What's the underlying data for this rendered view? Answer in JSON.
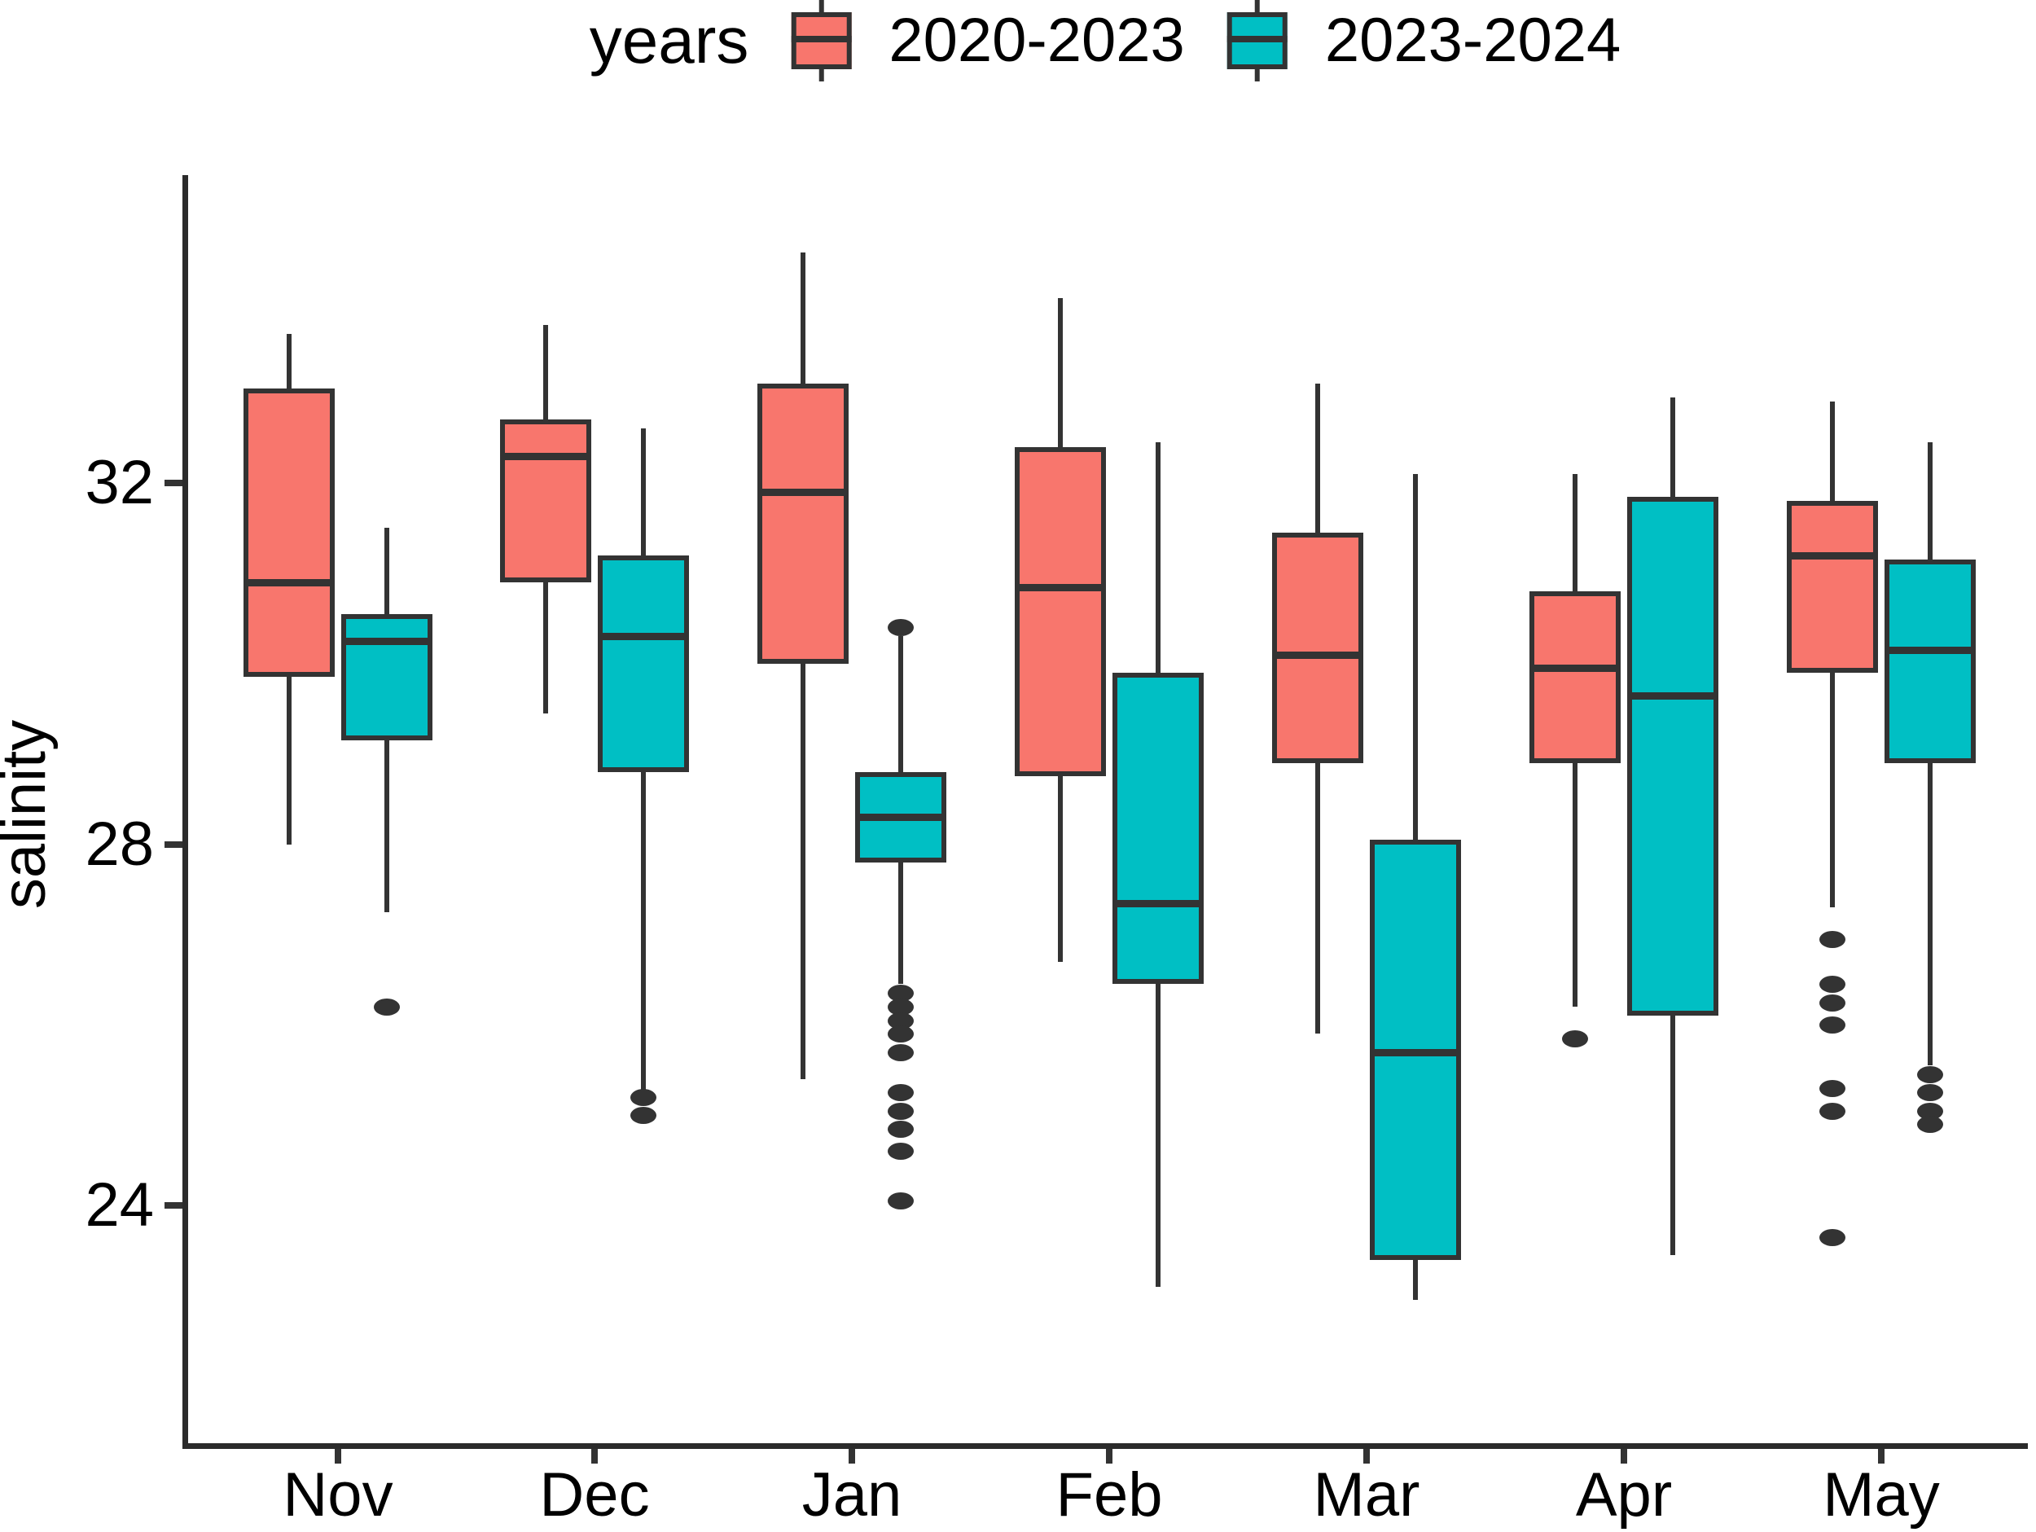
{
  "figure": {
    "background": "#FFFFFF"
  },
  "legend": {
    "title": "years",
    "items": [
      {
        "label": "2020-2023",
        "color": "#F8766D"
      },
      {
        "label": "2023-2024",
        "color": "#00BFC4"
      }
    ]
  },
  "axes": {
    "y_title": "salinity",
    "y_tick_labels": [
      "32",
      "28",
      "24"
    ],
    "x_labels": [
      "Nov",
      "Dec",
      "Jan",
      "Feb",
      "Mar",
      "Apr",
      "May"
    ]
  },
  "style": {
    "series_color_1": "#F8766D",
    "series_color_2": "#00BFC4",
    "stroke": "#333333",
    "axis_color": "#2b2b2b",
    "text_color": "#000000"
  },
  "chart_data": {
    "type": "boxplot",
    "title": "",
    "xlabel": "",
    "ylabel": "salinity",
    "legend_title": "years",
    "legend_position": "top-center",
    "grid": false,
    "categories": [
      "Nov",
      "Dec",
      "Jan",
      "Feb",
      "Mar",
      "Apr",
      "May"
    ],
    "y_ticks": [
      24,
      28,
      32
    ],
    "ylim": [
      21.4,
      35.4
    ],
    "series": [
      {
        "name": "2020-2023",
        "color": "#F8766D",
        "boxes": [
          {
            "category": "Nov",
            "lower_whisker": 28.0,
            "q1": 29.85,
            "median": 30.9,
            "q3": 33.05,
            "upper_whisker": 33.65,
            "outliers": []
          },
          {
            "category": "Dec",
            "lower_whisker": 29.45,
            "q1": 30.9,
            "median": 32.3,
            "q3": 32.7,
            "upper_whisker": 33.75,
            "outliers": []
          },
          {
            "category": "Jan",
            "lower_whisker": 25.4,
            "q1": 30.0,
            "median": 31.9,
            "q3": 33.1,
            "upper_whisker": 34.55,
            "outliers": []
          },
          {
            "category": "Feb",
            "lower_whisker": 26.7,
            "q1": 28.75,
            "median": 30.85,
            "q3": 32.4,
            "upper_whisker": 34.05,
            "outliers": []
          },
          {
            "category": "Mar",
            "lower_whisker": 25.9,
            "q1": 28.9,
            "median": 30.1,
            "q3": 31.45,
            "upper_whisker": 33.1,
            "outliers": []
          },
          {
            "category": "Apr",
            "lower_whisker": 26.2,
            "q1": 28.9,
            "median": 29.95,
            "q3": 30.8,
            "upper_whisker": 32.1,
            "outliers": [
              25.85
            ]
          },
          {
            "category": "May",
            "lower_whisker": 27.3,
            "q1": 29.9,
            "median": 31.2,
            "q3": 31.8,
            "upper_whisker": 32.9,
            "outliers": [
              26.95,
              26.45,
              26.25,
              26.0,
              25.3,
              25.05,
              23.65
            ]
          }
        ]
      },
      {
        "name": "2023-2024",
        "color": "#00BFC4",
        "boxes": [
          {
            "category": "Nov",
            "lower_whisker": 27.25,
            "q1": 29.15,
            "median": 30.25,
            "q3": 30.55,
            "upper_whisker": 31.5,
            "outliers": [
              26.2
            ]
          },
          {
            "category": "Dec",
            "lower_whisker": 25.25,
            "q1": 28.8,
            "median": 30.3,
            "q3": 31.2,
            "upper_whisker": 32.6,
            "outliers": [
              25.2,
              25.0
            ]
          },
          {
            "category": "Jan",
            "lower_whisker": 26.45,
            "q1": 27.8,
            "median": 28.3,
            "q3": 28.8,
            "upper_whisker": 30.3,
            "outliers": [
              30.4,
              26.35,
              26.2,
              26.05,
              25.9,
              25.7,
              25.25,
              25.05,
              24.85,
              24.6,
              24.05
            ]
          },
          {
            "category": "Feb",
            "lower_whisker": 23.1,
            "q1": 26.45,
            "median": 27.35,
            "q3": 29.9,
            "upper_whisker": 32.45,
            "outliers": []
          },
          {
            "category": "Mar",
            "lower_whisker": 22.95,
            "q1": 23.4,
            "median": 25.7,
            "q3": 28.05,
            "upper_whisker": 32.1,
            "outliers": []
          },
          {
            "category": "Apr",
            "lower_whisker": 23.45,
            "q1": 26.1,
            "median": 29.65,
            "q3": 31.85,
            "upper_whisker": 32.95,
            "outliers": []
          },
          {
            "category": "May",
            "lower_whisker": 25.55,
            "q1": 28.9,
            "median": 30.15,
            "q3": 31.15,
            "upper_whisker": 32.45,
            "outliers": [
              25.45,
              25.25,
              25.05,
              24.9
            ]
          }
        ]
      }
    ]
  }
}
